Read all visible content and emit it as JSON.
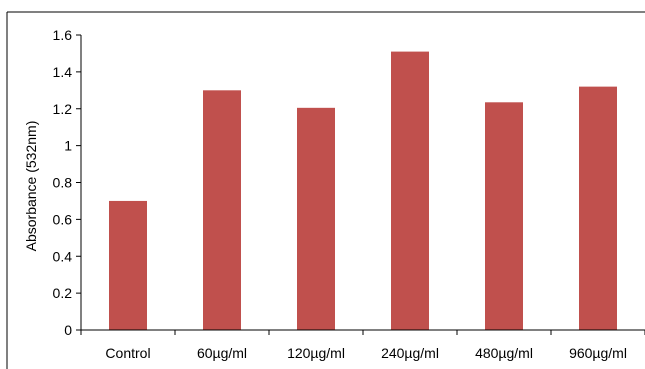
{
  "chart_data": {
    "type": "bar",
    "title": "",
    "xlabel": "",
    "ylabel": "Absorbance (532nm)",
    "categories": [
      "Control",
      "60µg/ml",
      "120µg/ml",
      "240µg/ml",
      "480µg/ml",
      "960µg/ml"
    ],
    "values": [
      0.7,
      1.3,
      1.205,
      1.51,
      1.235,
      1.32
    ],
    "ylim": [
      0,
      1.6
    ],
    "yticks": [
      0,
      0.2,
      0.4,
      0.6,
      0.8,
      1,
      1.2,
      1.4,
      1.6
    ],
    "ytick_labels": [
      "0",
      "0.2",
      "0.4",
      "0.6",
      "0.8",
      "1",
      "1.2",
      "1.4",
      "1.6"
    ],
    "bar_color": "#c0504d",
    "grid": false,
    "legend": "none"
  }
}
